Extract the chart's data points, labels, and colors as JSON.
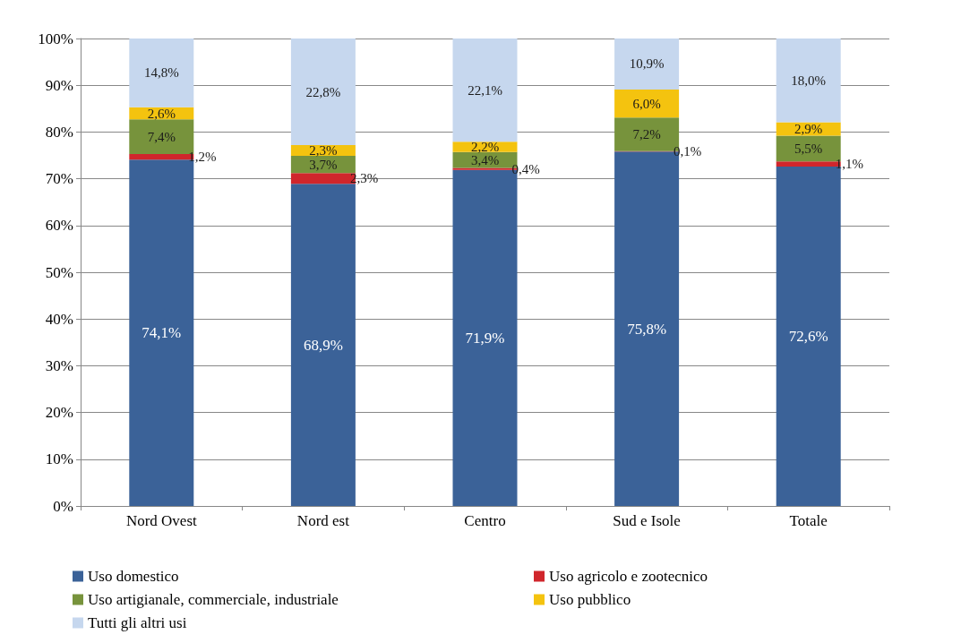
{
  "chart_data": {
    "type": "bar",
    "stacked": true,
    "categories": [
      "Nord Ovest",
      "Nord est",
      "Centro",
      "Sud e Isole",
      "Totale"
    ],
    "series": [
      {
        "name": "Uso domestico",
        "color": "#3b6298",
        "values": [
          74.1,
          68.9,
          71.9,
          75.8,
          72.6
        ],
        "value_labels": [
          "74,1%",
          "68,9%",
          "71,9%",
          "75,8%",
          "72,6%"
        ]
      },
      {
        "name": "Uso agricolo e zootecnico",
        "color": "#d0262c",
        "values": [
          1.2,
          2.3,
          0.4,
          0.1,
          1.1
        ],
        "value_labels": [
          "1,2%",
          "2,3%",
          "0,4%",
          "0,1%",
          "1,1%"
        ]
      },
      {
        "name": "Uso artigianale, commerciale, industriale",
        "color": "#77933c",
        "values": [
          7.4,
          3.7,
          3.4,
          7.2,
          5.5
        ],
        "value_labels": [
          "7,4%",
          "3,7%",
          "3,4%",
          "7,2%",
          "5,5%"
        ]
      },
      {
        "name": "Uso pubblico",
        "color": "#f4c30f",
        "values": [
          2.6,
          2.3,
          2.2,
          6.0,
          2.9
        ],
        "value_labels": [
          "2,6%",
          "2,3%",
          "2,2%",
          "6,0%",
          "2,9%"
        ]
      },
      {
        "name": "Tutti gli altri usi",
        "color": "#c6d7ee",
        "values": [
          14.8,
          22.8,
          22.1,
          10.9,
          18.0
        ],
        "value_labels": [
          "14,8%",
          "22,8%",
          "22,1%",
          "10,9%",
          "18,0%"
        ]
      }
    ],
    "ylim": [
      0,
      100
    ],
    "yticks": [
      {
        "value": 0,
        "label": "0%"
      },
      {
        "value": 10,
        "label": "10%"
      },
      {
        "value": 20,
        "label": "20%"
      },
      {
        "value": 30,
        "label": "30%"
      },
      {
        "value": 40,
        "label": "40%"
      },
      {
        "value": 50,
        "label": "50%"
      },
      {
        "value": 60,
        "label": "60%"
      },
      {
        "value": 70,
        "label": "70%"
      },
      {
        "value": 80,
        "label": "80%"
      },
      {
        "value": 90,
        "label": "90%"
      },
      {
        "value": 100,
        "label": "100%"
      }
    ],
    "grid": "y",
    "legend": "bottom"
  }
}
